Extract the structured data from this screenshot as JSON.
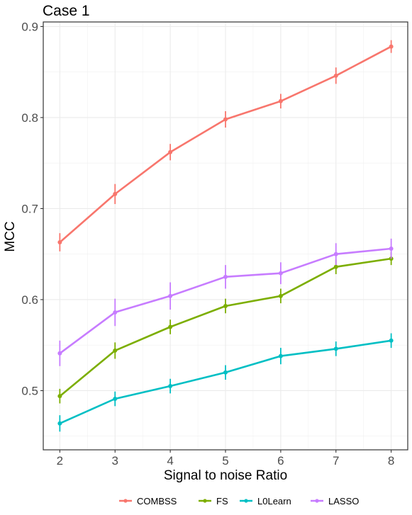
{
  "chart_data": {
    "type": "line",
    "title": "Case 1",
    "xlabel": "Signal to noise Ratio",
    "ylabel": "MCC",
    "x": [
      2,
      3,
      4,
      5,
      6,
      7,
      8
    ],
    "x_ticks": [
      "2",
      "3",
      "4",
      "5",
      "6",
      "7",
      "8"
    ],
    "xlim": [
      1.7,
      8.3
    ],
    "y_ticks": [
      "0.5",
      "0.6",
      "0.7",
      "0.8",
      "0.9"
    ],
    "ylim": [
      0.435,
      0.905
    ],
    "grid": true,
    "legend_position": "bottom",
    "series": [
      {
        "name": "COMBSS",
        "color": "#F8766D",
        "values": [
          0.663,
          0.716,
          0.762,
          0.798,
          0.818,
          0.846,
          0.878
        ],
        "err": [
          0.01,
          0.011,
          0.009,
          0.009,
          0.008,
          0.009,
          0.007
        ]
      },
      {
        "name": "FS",
        "color": "#7CAE00",
        "values": [
          0.494,
          0.544,
          0.57,
          0.593,
          0.604,
          0.636,
          0.645
        ],
        "err": [
          0.008,
          0.009,
          0.008,
          0.008,
          0.008,
          0.008,
          0.007
        ]
      },
      {
        "name": "L0Learn",
        "color": "#00BFC4",
        "values": [
          0.464,
          0.491,
          0.505,
          0.52,
          0.538,
          0.546,
          0.555
        ],
        "err": [
          0.009,
          0.008,
          0.008,
          0.008,
          0.009,
          0.008,
          0.008
        ]
      },
      {
        "name": "LASSO",
        "color": "#C77CFF",
        "values": [
          0.541,
          0.586,
          0.604,
          0.625,
          0.629,
          0.65,
          0.656
        ],
        "err": [
          0.014,
          0.015,
          0.015,
          0.013,
          0.012,
          0.012,
          0.011
        ]
      }
    ]
  }
}
